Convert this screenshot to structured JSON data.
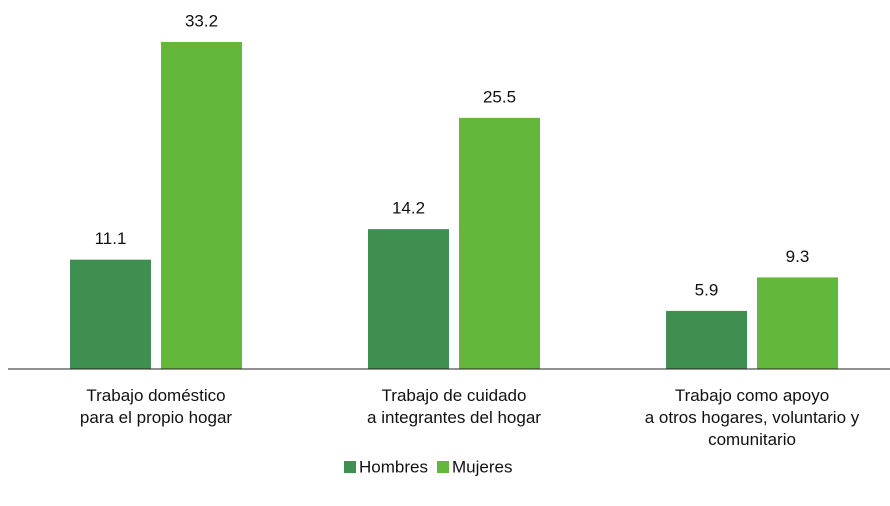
{
  "chart_data": {
    "type": "bar",
    "categories": [
      "Trabajo doméstico\npara el propio hogar",
      "Trabajo de cuidado\na integrantes del hogar",
      "Trabajo como apoyo\na otros hogares, voluntario y\ncomunitario"
    ],
    "series": [
      {
        "name": "Hombres",
        "color": "#3f8f50",
        "values": [
          11.1,
          14.2,
          5.9
        ]
      },
      {
        "name": "Mujeres",
        "color": "#63b83b",
        "values": [
          33.2,
          25.5,
          9.3
        ]
      }
    ],
    "legend": "bottom"
  }
}
